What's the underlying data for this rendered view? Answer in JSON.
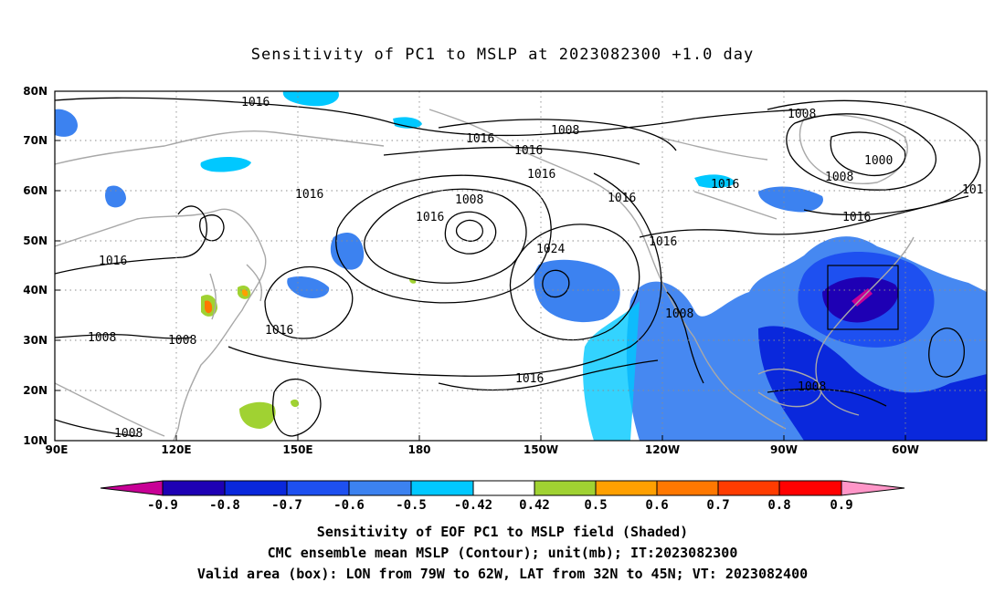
{
  "title": "Sensitivity of PC1 to MSLP at 2023082300 +1.0 day",
  "map": {
    "lon_labels": [
      "90E",
      "120E",
      "150E",
      "180",
      "150W",
      "120W",
      "90W",
      "60W"
    ],
    "lat_labels": [
      "80N",
      "70N",
      "60N",
      "50N",
      "40N",
      "30N",
      "20N",
      "10N"
    ],
    "contour_labels": [
      "1016",
      "1016",
      "1008",
      "1016",
      "1016",
      "1016",
      "1008",
      "1016",
      "1016",
      "1008",
      "1000",
      "1008",
      "1016",
      "101",
      "1016",
      "1016",
      "1024",
      "1016",
      "1016",
      "1008",
      "1008",
      "1008",
      "1016",
      "1008",
      "1008"
    ],
    "valid_box": {
      "lon_from": "79W",
      "lon_to": "62W",
      "lat_from": "32N",
      "lat_to": "45N"
    }
  },
  "colorbar": {
    "labels": [
      "-0.9",
      "-0.8",
      "-0.7",
      "-0.6",
      "-0.5",
      "-0.42",
      "0.42",
      "0.5",
      "0.6",
      "0.7",
      "0.8",
      "0.9"
    ],
    "colors": [
      "#c80096",
      "#1e00b4",
      "#0a28dc",
      "#1e50f0",
      "#3c82f0",
      "#00c8ff",
      "#ffffff",
      "#a0d232",
      "#ffa000",
      "#ff7800",
      "#ff3c00",
      "#ff0000",
      "#ff96c8"
    ]
  },
  "captions": {
    "line1": "Sensitivity of EOF PC1 to MSLP field (Shaded)",
    "line2": "CMC ensemble mean MSLP (Contour); unit(mb); IT:2023082300",
    "line3": "Valid area (box): LON from 79W to 62W, LAT from 32N to 45N; VT: 2023082400"
  }
}
